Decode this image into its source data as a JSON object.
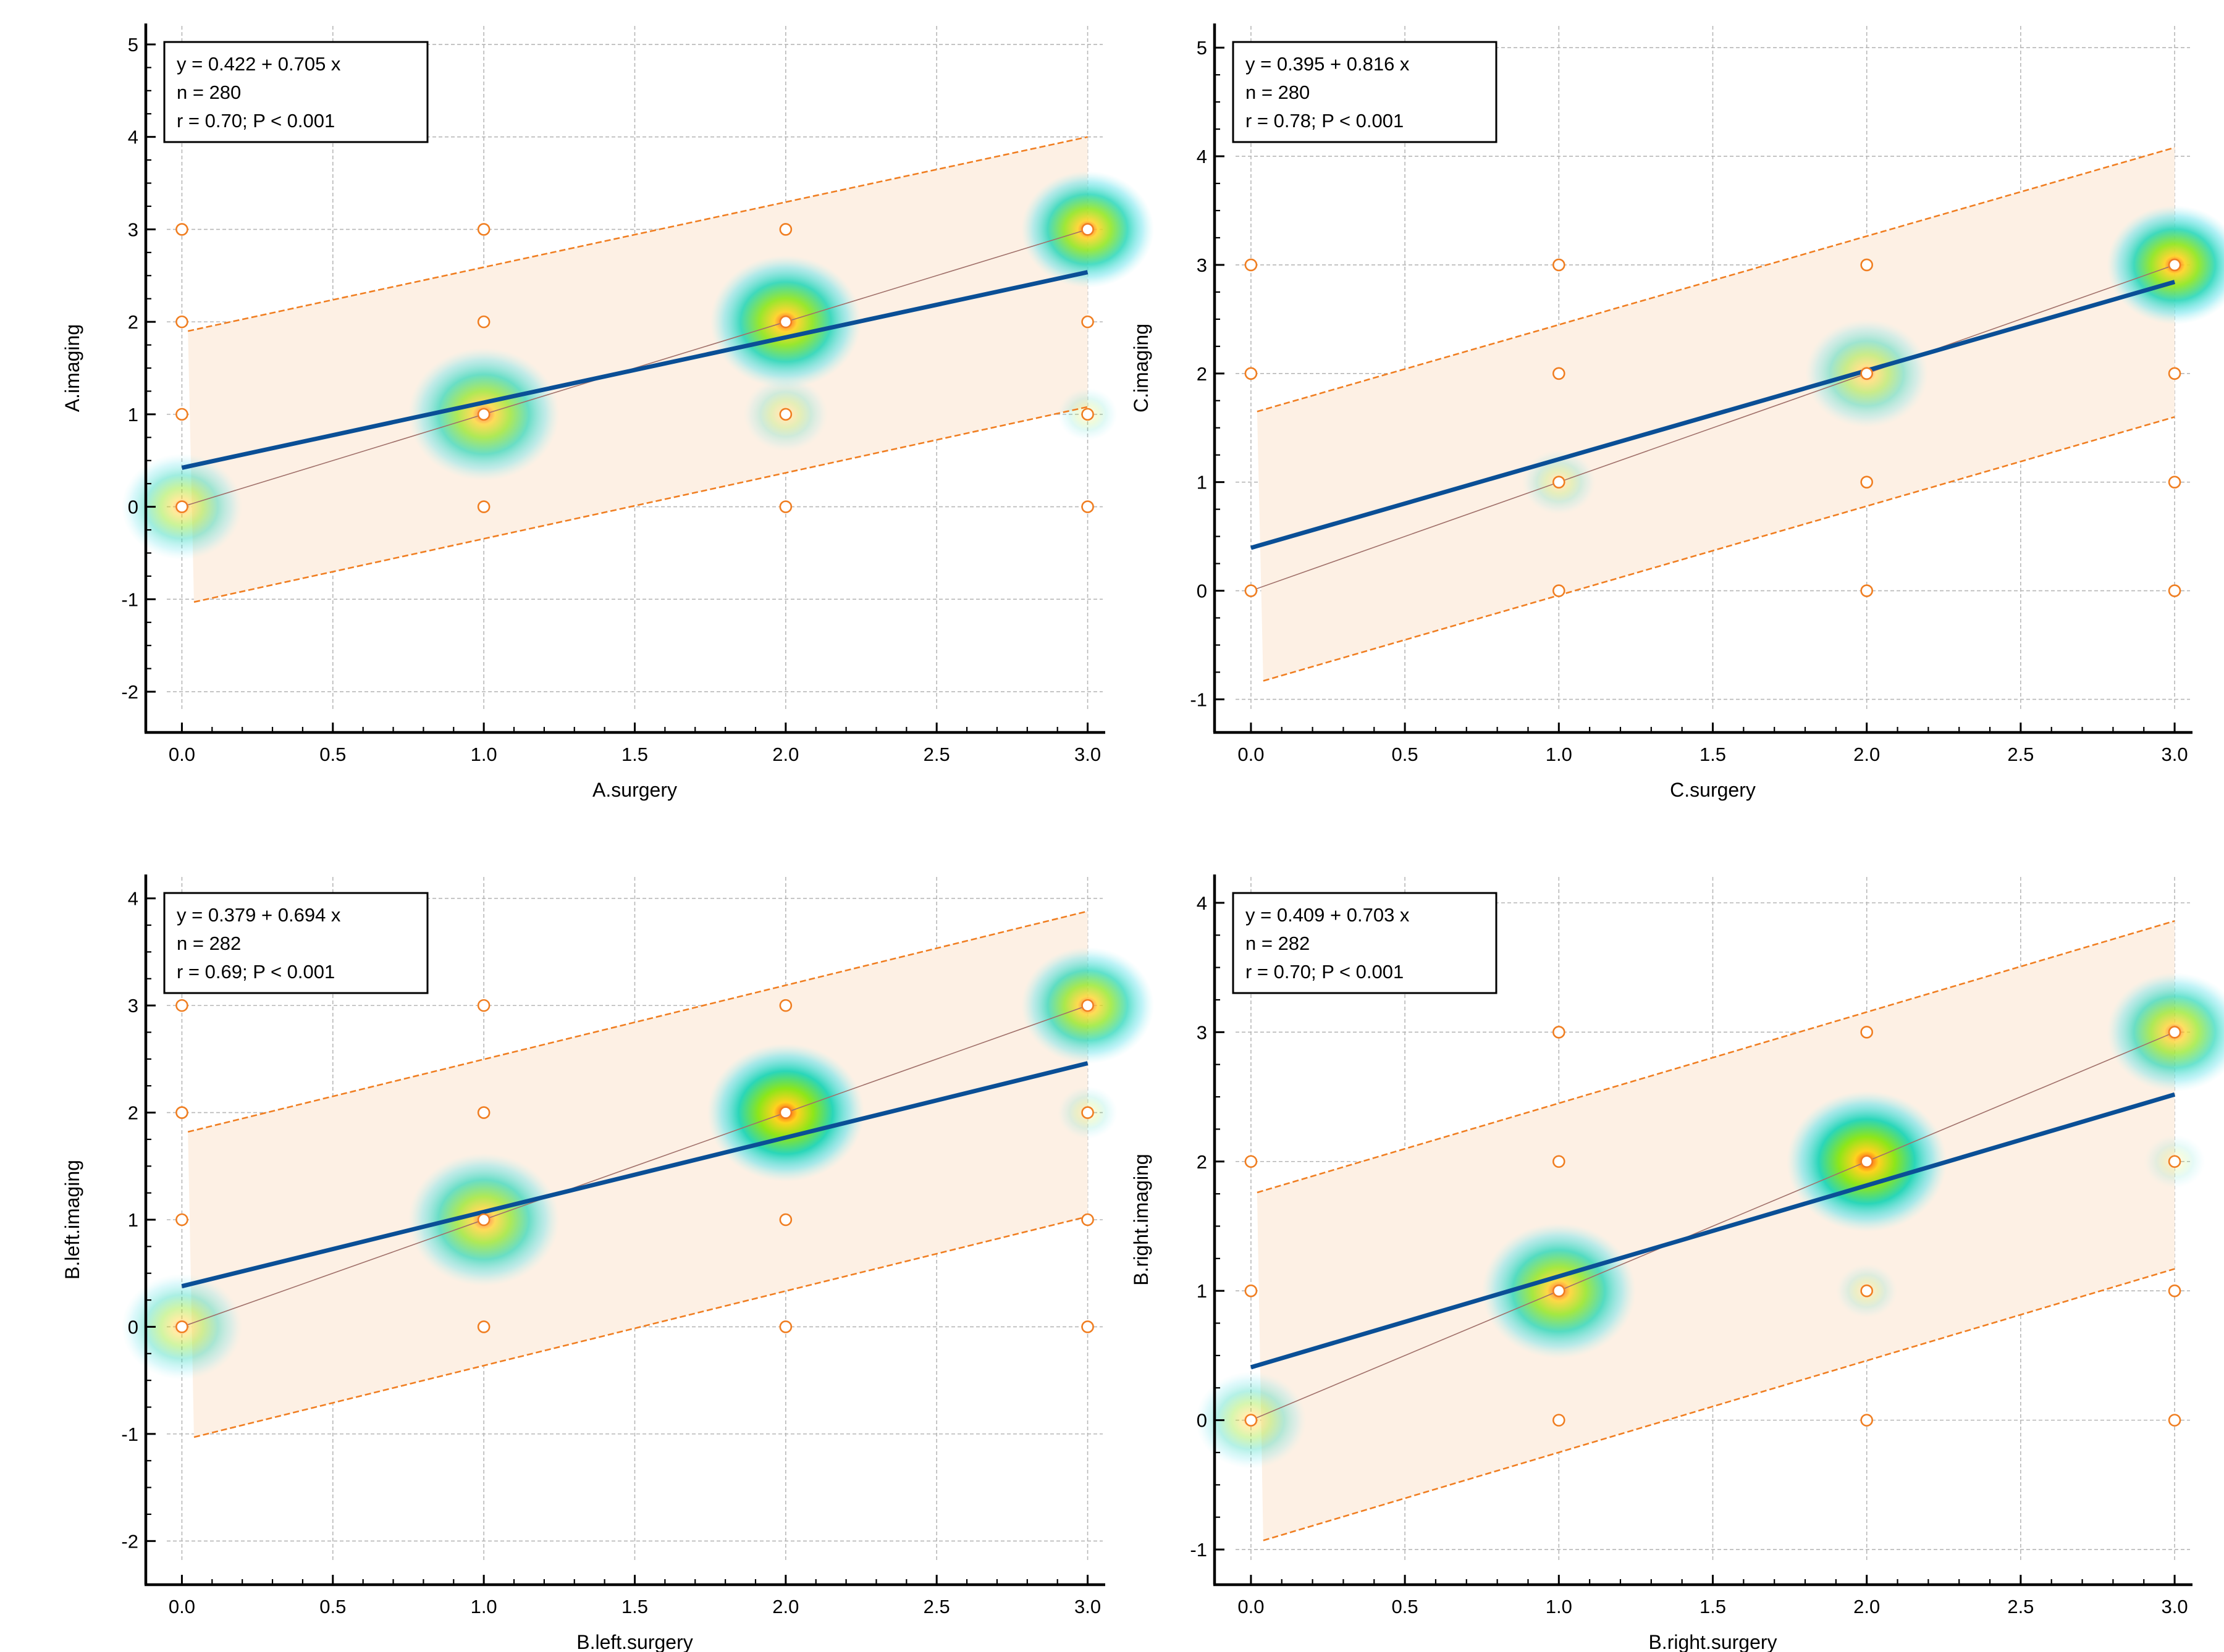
{
  "colors": {
    "regression": "#0a4f96",
    "limits": "#f07e21",
    "band": "#fdf0e4",
    "identity": "#a0706a",
    "marker": "#f07e21",
    "grid": "#b7b7b7"
  },
  "chart_data": [
    {
      "type": "scatter",
      "xlabel": "A.surgery",
      "ylabel": "A.imaging",
      "xlim": [
        -0.05,
        3.05
      ],
      "ylim": [
        -2.2,
        5.2
      ],
      "xticks": [
        0.0,
        0.5,
        1.0,
        1.5,
        2.0,
        2.5,
        3.0
      ],
      "xtick_labels": [
        "0.0",
        "0.5",
        "1.0",
        "1.5",
        "2.0",
        "2.5",
        "3.0"
      ],
      "yticks": [
        -2,
        -1,
        0,
        1,
        2,
        3,
        4,
        5
      ],
      "ytick_labels": [
        "-2",
        "-1",
        "0",
        "1",
        "2",
        "3",
        "4",
        "5"
      ],
      "stats": [
        "y = 0.422 + 0.705 x",
        "n = 280",
        "r = 0.70; P < 0.001"
      ],
      "regression": {
        "intercept": 0.422,
        "slope": 0.705
      },
      "prediction_upper": {
        "x0": 0.02,
        "y0": 1.9,
        "x1": 3.0,
        "y1": 4.0
      },
      "prediction_lower": {
        "x0": 0.04,
        "y0": -1.03,
        "x1": 3.0,
        "y1": 1.08
      },
      "points": [
        [
          0,
          0
        ],
        [
          0,
          1
        ],
        [
          0,
          2
        ],
        [
          0,
          3
        ],
        [
          1,
          0
        ],
        [
          1,
          1
        ],
        [
          1,
          2
        ],
        [
          1,
          3
        ],
        [
          2,
          0
        ],
        [
          2,
          1
        ],
        [
          2,
          2
        ],
        [
          2,
          3
        ],
        [
          3,
          0
        ],
        [
          3,
          1
        ],
        [
          3,
          2
        ],
        [
          3,
          3
        ]
      ],
      "density": [
        {
          "x": 0,
          "y": 0,
          "w": 0.45,
          "rx": 0.2
        },
        {
          "x": 1,
          "y": 1,
          "w": 0.7,
          "rx": 0.25
        },
        {
          "x": 2,
          "y": 2,
          "w": 0.9,
          "rx": 0.25
        },
        {
          "x": 2,
          "y": 1,
          "w": 0.22,
          "rx": 0.14
        },
        {
          "x": 3,
          "y": 3,
          "w": 0.85,
          "rx": 0.22
        },
        {
          "x": 3,
          "y": 1,
          "w": 0.15,
          "rx": 0.1
        }
      ]
    },
    {
      "type": "scatter",
      "xlabel": "C.surgery",
      "ylabel": "C.imaging",
      "xlim": [
        -0.05,
        3.05
      ],
      "ylim": [
        -1.1,
        5.2
      ],
      "xticks": [
        0.0,
        0.5,
        1.0,
        1.5,
        2.0,
        2.5,
        3.0
      ],
      "xtick_labels": [
        "0.0",
        "0.5",
        "1.0",
        "1.5",
        "2.0",
        "2.5",
        "3.0"
      ],
      "yticks": [
        -1,
        0,
        1,
        2,
        3,
        4,
        5
      ],
      "ytick_labels": [
        "-1",
        "0",
        "1",
        "2",
        "3",
        "4",
        "5"
      ],
      "stats": [
        "y = 0.395 + 0.816 x",
        "n = 280",
        "r = 0.78; P < 0.001"
      ],
      "regression": {
        "intercept": 0.395,
        "slope": 0.816
      },
      "prediction_upper": {
        "x0": 0.02,
        "y0": 1.65,
        "x1": 3.0,
        "y1": 4.08
      },
      "prediction_lower": {
        "x0": 0.04,
        "y0": -0.83,
        "x1": 3.0,
        "y1": 1.6
      },
      "points": [
        [
          0,
          0
        ],
        [
          0,
          2
        ],
        [
          0,
          3
        ],
        [
          1,
          0
        ],
        [
          1,
          1
        ],
        [
          1,
          2
        ],
        [
          1,
          3
        ],
        [
          2,
          0
        ],
        [
          2,
          1
        ],
        [
          2,
          2
        ],
        [
          2,
          3
        ],
        [
          3,
          0
        ],
        [
          3,
          1
        ],
        [
          3,
          2
        ],
        [
          3,
          3
        ]
      ],
      "density": [
        {
          "x": 1,
          "y": 1,
          "w": 0.2,
          "rx": 0.12
        },
        {
          "x": 2,
          "y": 2,
          "w": 0.45,
          "rx": 0.2
        },
        {
          "x": 3,
          "y": 3,
          "w": 0.9,
          "rx": 0.22
        }
      ]
    },
    {
      "type": "scatter",
      "xlabel": "B.left.surgery",
      "ylabel": "B.left.imaging",
      "xlim": [
        -0.05,
        3.05
      ],
      "ylim": [
        -2.2,
        4.2
      ],
      "xticks": [
        0.0,
        0.5,
        1.0,
        1.5,
        2.0,
        2.5,
        3.0
      ],
      "xtick_labels": [
        "0.0",
        "0.5",
        "1.0",
        "1.5",
        "2.0",
        "2.5",
        "3.0"
      ],
      "yticks": [
        -2,
        -1,
        0,
        1,
        2,
        3,
        4
      ],
      "ytick_labels": [
        "-2",
        "-1",
        "0",
        "1",
        "2",
        "3",
        "4"
      ],
      "stats": [
        "y = 0.379 + 0.694 x",
        "n = 282",
        "r = 0.69; P < 0.001"
      ],
      "regression": {
        "intercept": 0.379,
        "slope": 0.694
      },
      "prediction_upper": {
        "x0": 0.02,
        "y0": 1.82,
        "x1": 3.0,
        "y1": 3.88
      },
      "prediction_lower": {
        "x0": 0.04,
        "y0": -1.03,
        "x1": 3.0,
        "y1": 1.03
      },
      "points": [
        [
          0,
          0
        ],
        [
          0,
          1
        ],
        [
          0,
          2
        ],
        [
          0,
          3
        ],
        [
          1,
          0
        ],
        [
          1,
          1
        ],
        [
          1,
          2
        ],
        [
          1,
          3
        ],
        [
          2,
          0
        ],
        [
          2,
          1
        ],
        [
          2,
          2
        ],
        [
          2,
          3
        ],
        [
          3,
          0
        ],
        [
          3,
          1
        ],
        [
          3,
          2
        ],
        [
          3,
          3
        ]
      ],
      "density": [
        {
          "x": 0,
          "y": 0,
          "w": 0.4,
          "rx": 0.2
        },
        {
          "x": 1,
          "y": 1,
          "w": 0.7,
          "rx": 0.25
        },
        {
          "x": 2,
          "y": 2,
          "w": 1.0,
          "rx": 0.26
        },
        {
          "x": 3,
          "y": 3,
          "w": 0.75,
          "rx": 0.22
        },
        {
          "x": 3,
          "y": 2,
          "w": 0.15,
          "rx": 0.1
        }
      ]
    },
    {
      "type": "scatter",
      "xlabel": "B.right.surgery",
      "ylabel": "B.right.imaging",
      "xlim": [
        -0.05,
        3.05
      ],
      "ylim": [
        -1.1,
        4.2
      ],
      "xticks": [
        0.0,
        0.5,
        1.0,
        1.5,
        2.0,
        2.5,
        3.0
      ],
      "xtick_labels": [
        "0.0",
        "0.5",
        "1.0",
        "1.5",
        "2.0",
        "2.5",
        "3.0"
      ],
      "yticks": [
        -1,
        0,
        1,
        2,
        3,
        4
      ],
      "ytick_labels": [
        "-1",
        "0",
        "1",
        "2",
        "3",
        "4"
      ],
      "stats": [
        "y = 0.409 + 0.703 x",
        "n = 282",
        "r = 0.70; P < 0.001"
      ],
      "regression": {
        "intercept": 0.409,
        "slope": 0.703
      },
      "prediction_upper": {
        "x0": 0.02,
        "y0": 1.76,
        "x1": 3.0,
        "y1": 3.86
      },
      "prediction_lower": {
        "x0": 0.04,
        "y0": -0.93,
        "x1": 3.0,
        "y1": 1.17
      },
      "points": [
        [
          0,
          0
        ],
        [
          0,
          1
        ],
        [
          0,
          2
        ],
        [
          1,
          0
        ],
        [
          1,
          1
        ],
        [
          1,
          2
        ],
        [
          1,
          3
        ],
        [
          2,
          0
        ],
        [
          2,
          1
        ],
        [
          2,
          2
        ],
        [
          2,
          3
        ],
        [
          3,
          0
        ],
        [
          3,
          1
        ],
        [
          3,
          2
        ],
        [
          3,
          3
        ]
      ],
      "density": [
        {
          "x": 0,
          "y": 0,
          "w": 0.35,
          "rx": 0.18
        },
        {
          "x": 1,
          "y": 1,
          "w": 0.8,
          "rx": 0.25
        },
        {
          "x": 2,
          "y": 2,
          "w": 1.0,
          "rx": 0.26
        },
        {
          "x": 2,
          "y": 1,
          "w": 0.15,
          "rx": 0.1
        },
        {
          "x": 3,
          "y": 3,
          "w": 0.7,
          "rx": 0.22
        },
        {
          "x": 3,
          "y": 2,
          "w": 0.12,
          "rx": 0.1
        }
      ]
    }
  ]
}
